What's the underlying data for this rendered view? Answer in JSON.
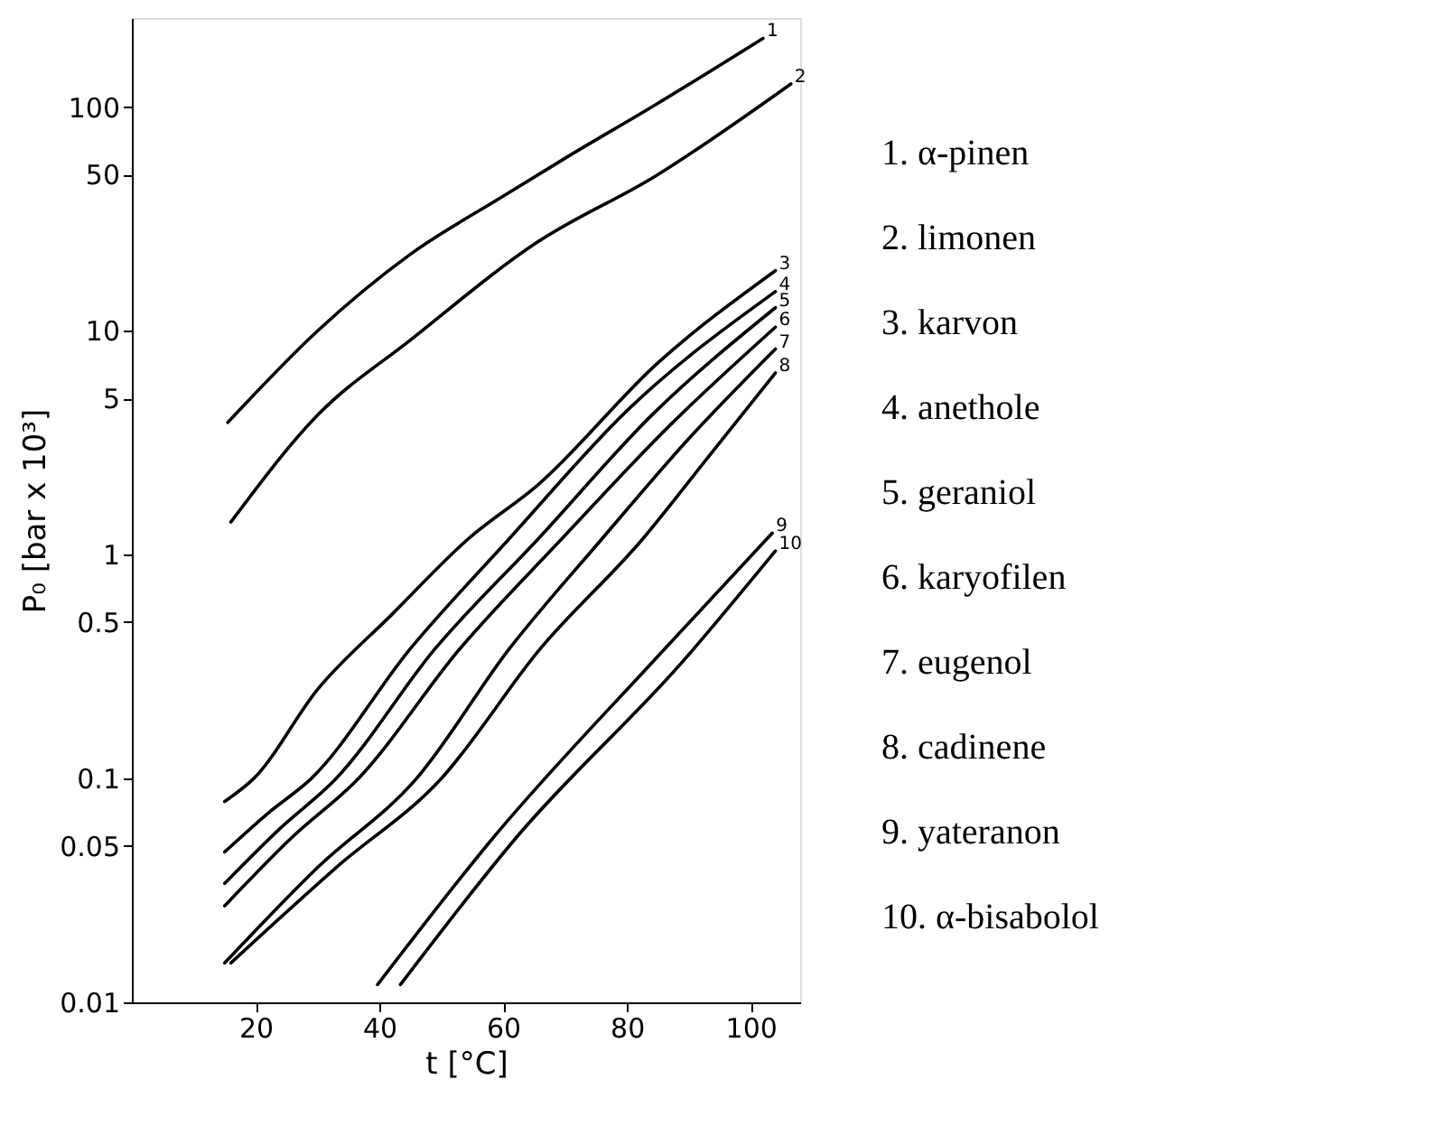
{
  "chart_data": {
    "type": "line",
    "xlabel": "t [°C]",
    "ylabel": "P₀ [bar x 10³]",
    "log": true,
    "grid": false,
    "legend": "right",
    "line_style": "solid",
    "xlim": [
      0,
      108
    ],
    "ylim": [
      0.01,
      250
    ],
    "xticks": [
      20,
      40,
      60,
      80,
      100
    ],
    "yticks": [
      0.01,
      0.05,
      0.1,
      0.5,
      1,
      5,
      10,
      50,
      100
    ],
    "series": [
      {
        "name": "1. α-pinen",
        "color": "#000000",
        "x": [
          15.5,
          30,
          45,
          60,
          70.4,
          84.5,
          102
        ],
        "values": [
          3.9,
          10,
          22,
          40,
          60,
          102,
          203
        ]
      },
      {
        "name": "2. limonen",
        "color": "#000000",
        "x": [
          16,
          30,
          45,
          65.6,
          84.5,
          106.5
        ],
        "values": [
          1.4,
          4.2,
          9.1,
          25,
          49,
          127
        ]
      },
      {
        "name": "3. karvon",
        "color": "#000000",
        "x": [
          15,
          19.7,
          30,
          42,
          54.4,
          65.6,
          85,
          104
        ],
        "values": [
          0.079,
          0.1,
          0.25,
          0.54,
          1.18,
          2.05,
          7.2,
          18.6
        ]
      },
      {
        "name": "4. anethole",
        "color": "#000000",
        "x": [
          15,
          22,
          29,
          45,
          61,
          80,
          104
        ],
        "values": [
          0.047,
          0.07,
          0.1,
          0.38,
          1.18,
          4.4,
          15
        ]
      },
      {
        "name": "5. geraniol",
        "color": "#000000",
        "x": [
          15,
          24,
          33,
          49,
          65.7,
          84,
          104
        ],
        "values": [
          0.034,
          0.06,
          0.1,
          0.38,
          1.18,
          4.2,
          12.7
        ]
      },
      {
        "name": "6. karyofilen",
        "color": "#000000",
        "x": [
          15,
          26,
          36.6,
          53,
          69.5,
          87,
          104
        ],
        "values": [
          0.027,
          0.055,
          0.1,
          0.38,
          1.18,
          3.8,
          10.4
        ]
      },
      {
        "name": "7. eugenol",
        "color": "#000000",
        "x": [
          15,
          30,
          46,
          61,
          76,
          90,
          104
        ],
        "values": [
          0.015,
          0.04,
          0.1,
          0.38,
          1.18,
          3.3,
          8.3
        ]
      },
      {
        "name": "8. cadinene",
        "color": "#000000",
        "x": [
          16,
          33,
          50,
          66,
          82.6,
          93,
          104
        ],
        "values": [
          0.015,
          0.04,
          0.1,
          0.38,
          1.18,
          2.7,
          6.5
        ]
      },
      {
        "name": "9. yateranon",
        "color": "#000000",
        "x": [
          39.7,
          58.3,
          84.5,
          103.5
        ],
        "values": [
          0.012,
          0.054,
          0.34,
          1.25
        ]
      },
      {
        "name": "10. α-bisabolol",
        "color": "#000000",
        "x": [
          43.4,
          62,
          89.3,
          104
        ],
        "values": [
          0.012,
          0.054,
          0.34,
          1.04
        ]
      }
    ],
    "annotations": [
      {
        "text": "1",
        "x": 102,
        "y": 203
      },
      {
        "text": "2",
        "x": 106.5,
        "y": 127
      },
      {
        "text": "3",
        "x": 104,
        "y": 18.6
      },
      {
        "text": "4",
        "x": 104,
        "y": 15
      },
      {
        "text": "5",
        "x": 104,
        "y": 12.7
      },
      {
        "text": "6",
        "x": 104,
        "y": 10.4
      },
      {
        "text": "7",
        "x": 104,
        "y": 8.3
      },
      {
        "text": "8",
        "x": 104,
        "y": 6.5
      },
      {
        "text": "9",
        "x": 103.5,
        "y": 1.25
      },
      {
        "text": "10",
        "x": 104,
        "y": 1.04
      }
    ]
  }
}
